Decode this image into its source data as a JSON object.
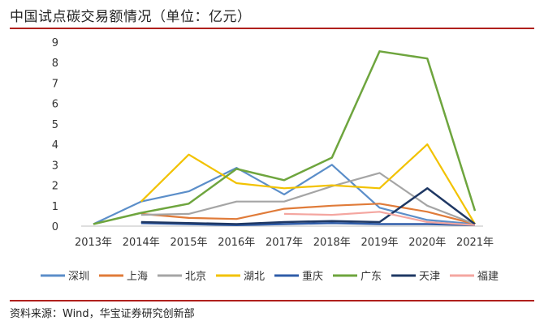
{
  "title": "中国试点碳交易额情况（单位：亿元）",
  "source": "资料来源：Wind，华宝证券研究创新部",
  "chart_data": {
    "type": "line",
    "title": "中国试点碳交易额情况（单位：亿元）",
    "categories": [
      "2013年",
      "2014年",
      "2015年",
      "2016年",
      "2017年",
      "2018年",
      "2019年",
      "2020年",
      "2021年"
    ],
    "ylim": [
      0,
      9
    ],
    "yticks": [
      0,
      1,
      2,
      3,
      4,
      5,
      6,
      7,
      8,
      9
    ],
    "grid": false,
    "legend_position": "bottom",
    "series": [
      {
        "name": "深圳",
        "color": "#5b8ec9",
        "values": [
          0.1,
          1.2,
          1.7,
          2.85,
          1.55,
          3.0,
          0.9,
          0.3,
          0.1
        ]
      },
      {
        "name": "上海",
        "color": "#e07b39",
        "values": [
          null,
          0.6,
          0.4,
          0.35,
          0.85,
          1.0,
          1.1,
          0.7,
          0.1
        ]
      },
      {
        "name": "北京",
        "color": "#a5a5a5",
        "values": [
          null,
          0.55,
          0.6,
          1.2,
          1.2,
          1.95,
          2.6,
          1.0,
          0.1
        ]
      },
      {
        "name": "湖北",
        "color": "#f2c200",
        "values": [
          null,
          1.2,
          3.5,
          2.1,
          1.85,
          2.0,
          1.85,
          4.0,
          0.1
        ]
      },
      {
        "name": "重庆",
        "color": "#2f5ca8",
        "values": [
          null,
          0.15,
          0.1,
          0.05,
          0.1,
          0.15,
          0.1,
          0.1,
          0.05
        ]
      },
      {
        "name": "广东",
        "color": "#6ea53e",
        "values": [
          0.1,
          0.65,
          1.1,
          2.8,
          2.25,
          3.35,
          8.55,
          8.2,
          0.75
        ]
      },
      {
        "name": "天津",
        "color": "#1f3864",
        "values": [
          null,
          0.2,
          0.15,
          0.1,
          0.2,
          0.25,
          0.2,
          1.85,
          0.1
        ]
      },
      {
        "name": "福建",
        "color": "#f4a6a0",
        "values": [
          null,
          null,
          null,
          null,
          0.6,
          0.55,
          0.7,
          0.2,
          0.05
        ]
      }
    ]
  }
}
